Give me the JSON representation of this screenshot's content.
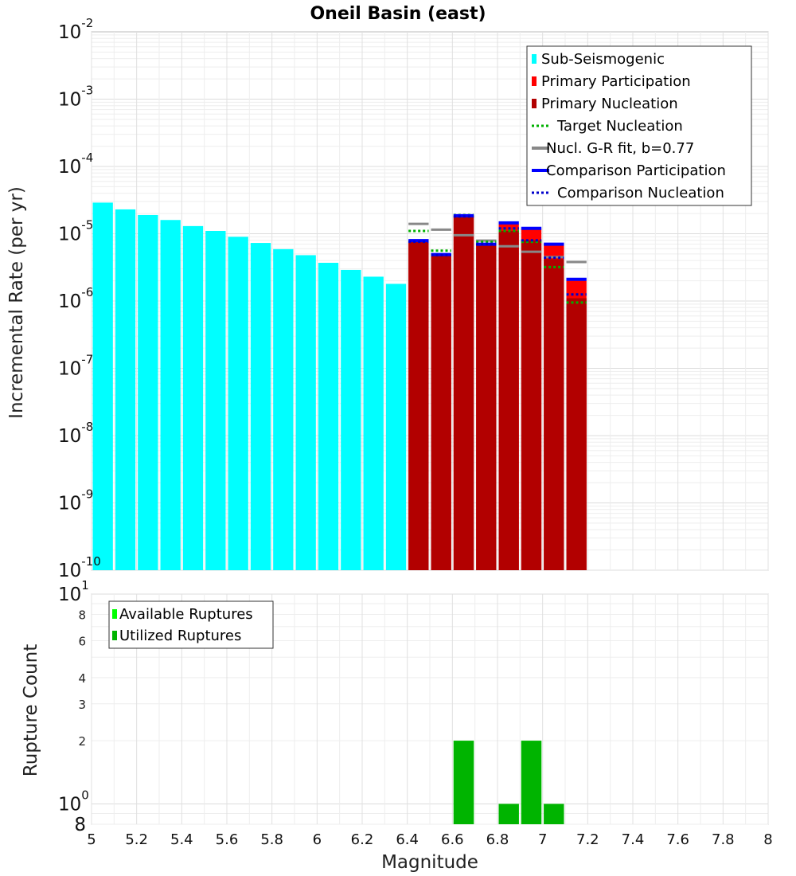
{
  "chart_data": [
    {
      "type": "bar",
      "title": "Oneil Basin (east)",
      "xlabel": "Magnitude",
      "ylabel": "Incremental Rate (per yr)",
      "yscale": "log",
      "xlim": [
        5,
        8
      ],
      "ylim": [
        1e-10,
        0.01
      ],
      "y_ticks": [
        {
          "base": "10",
          "exp": "-2"
        },
        {
          "base": "10",
          "exp": "-3"
        },
        {
          "base": "10",
          "exp": "-4"
        },
        {
          "base": "10",
          "exp": "-5"
        },
        {
          "base": "10",
          "exp": "-6"
        },
        {
          "base": "10",
          "exp": "-7"
        },
        {
          "base": "10",
          "exp": "-8"
        },
        {
          "base": "10",
          "exp": "-9"
        },
        {
          "base": "10",
          "exp": "-10"
        }
      ],
      "grid": true,
      "legend_position": "top-right",
      "bin_width": 0.1,
      "series": [
        {
          "name": "Sub-Seismogenic",
          "color": "#00ffff",
          "kind": "bar",
          "x": [
            5.05,
            5.15,
            5.25,
            5.35,
            5.45,
            5.55,
            5.65,
            5.75,
            5.85,
            5.95,
            6.05,
            6.15,
            6.25,
            6.35
          ],
          "values": [
            2.9e-05,
            2.3e-05,
            1.9e-05,
            1.6e-05,
            1.3e-05,
            1.1e-05,
            9e-06,
            7.3e-06,
            5.9e-06,
            4.8e-06,
            3.7e-06,
            2.9e-06,
            2.3e-06,
            1.8e-06
          ]
        },
        {
          "name": "Primary Participation",
          "color": "#ff0000",
          "kind": "bar",
          "x": [
            6.45,
            6.55,
            6.65,
            6.75,
            6.85,
            6.95,
            7.05,
            7.15
          ],
          "values": [
            7.9e-06,
            4.9e-06,
            1.85e-05,
            7e-06,
            1.4e-05,
            1.2e-05,
            7e-06,
            2e-06
          ]
        },
        {
          "name": "Primary Nucleation",
          "color": "#b20000",
          "kind": "bar",
          "x": [
            6.45,
            6.55,
            6.65,
            6.75,
            6.85,
            6.95,
            7.05,
            7.15
          ],
          "values": [
            7.9e-06,
            4.9e-06,
            1.8e-05,
            7e-06,
            1.1e-05,
            8e-06,
            4.2e-06,
            1.1e-06
          ]
        },
        {
          "name": "Target Nucleation",
          "color": "#00b000",
          "kind": "dotted-step",
          "x": [
            6.45,
            6.55,
            6.65,
            6.75,
            6.85,
            6.95,
            7.05,
            7.15
          ],
          "values": [
            1.1e-05,
            5.6e-06,
            1.9e-05,
            7.6e-06,
            1.1e-05,
            7.6e-06,
            3.2e-06,
            9.5e-07
          ]
        },
        {
          "name": "Nucl. G-R fit, b=0.77",
          "color": "#888888",
          "kind": "solid-step",
          "x": [
            6.45,
            6.55,
            6.65,
            6.75,
            6.85,
            6.95,
            7.05,
            7.15
          ],
          "values": [
            1.4e-05,
            1.15e-05,
            9.5e-06,
            7.9e-06,
            6.5e-06,
            5.4e-06,
            4.5e-06,
            3.8e-06
          ]
        },
        {
          "name": "Comparison Participation",
          "color": "#0000ff",
          "kind": "solid-step",
          "x": [
            6.45,
            6.55,
            6.65,
            6.75,
            6.85,
            6.95,
            7.05,
            7.15
          ],
          "values": [
            7.9e-06,
            4.9e-06,
            1.85e-05,
            7e-06,
            1.45e-05,
            1.2e-05,
            7e-06,
            2.1e-06
          ]
        },
        {
          "name": "Comparison Nucleation",
          "color": "#0000cc",
          "kind": "dotted-step",
          "x": [
            6.45,
            6.55,
            6.65,
            6.75,
            6.85,
            6.95,
            7.05,
            7.15
          ],
          "values": [
            7.6e-06,
            4.8e-06,
            1.8e-05,
            7e-06,
            1.2e-05,
            8e-06,
            4.4e-06,
            1.25e-06
          ]
        }
      ]
    },
    {
      "type": "bar",
      "xlabel": "Magnitude",
      "ylabel": "Rupture Count",
      "yscale": "log",
      "xlim": [
        5,
        8
      ],
      "ylim": [
        0.8,
        10
      ],
      "x_ticks": [
        "5",
        "5.2",
        "5.4",
        "5.6",
        "5.8",
        "6",
        "6.2",
        "6.4",
        "6.6",
        "6.8",
        "7",
        "7.2",
        "7.4",
        "7.6",
        "7.8",
        "8"
      ],
      "y_major_ticks": [
        {
          "base": "10",
          "exp": "1",
          "value": 10
        },
        {
          "base": "10",
          "exp": "0",
          "value": 1
        }
      ],
      "y_minor_ticks": [
        {
          "label": "8",
          "value": 8
        },
        {
          "label": "6",
          "value": 6
        },
        {
          "label": "4",
          "value": 4
        },
        {
          "label": "3",
          "value": 3
        },
        {
          "label": "2",
          "value": 2
        },
        {
          "label": "8",
          "value": 0.8
        }
      ],
      "grid": true,
      "legend_position": "top-left",
      "bin_width": 0.1,
      "series": [
        {
          "name": "Available Ruptures",
          "color": "#00ff00",
          "kind": "bar",
          "x": [
            6.65,
            6.85,
            6.95,
            7.05
          ],
          "values": [
            2,
            1,
            2,
            1
          ]
        },
        {
          "name": "Utilized Ruptures",
          "color": "#00b400",
          "kind": "bar",
          "x": [
            6.65,
            6.85,
            6.95,
            7.05
          ],
          "values": [
            2,
            1,
            2,
            1
          ]
        }
      ]
    }
  ]
}
